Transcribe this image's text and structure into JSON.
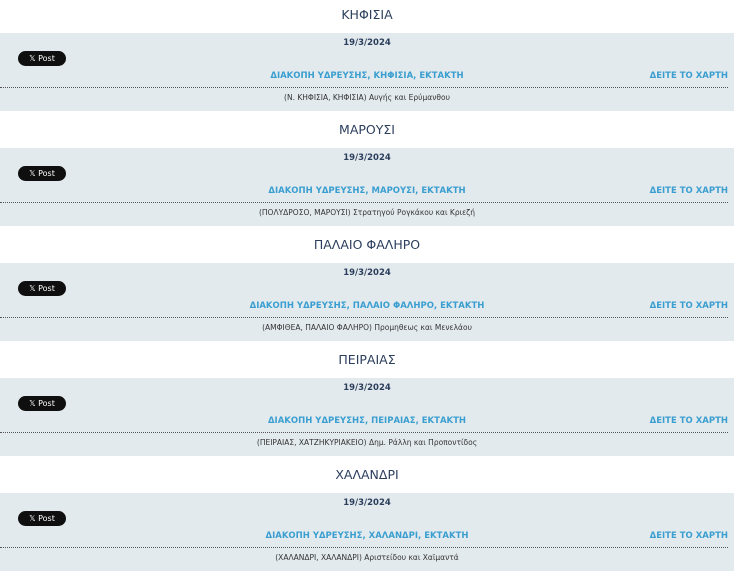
{
  "post_label": "𝕏 Post",
  "map_label": "ΔΕΙΤΕ ΤΟ ΧΑΡΤΗ",
  "items": [
    {
      "area": "ΚΗΦΙΣΙΑ",
      "date": "19/3/2024",
      "title": "ΔΙΑΚΟΠΗ ΥΔΡΕΥΣΗΣ, ΚΗΦΙΣΙΑ, ΕΚΤΑΚΤΗ",
      "address": "(Ν. ΚΗΦΙΣΙΑ, ΚΗΦΙΣΙΑ) Αυγής και Ερύμανθου"
    },
    {
      "area": "ΜΑΡΟΥΣΙ",
      "date": "19/3/2024",
      "title": "ΔΙΑΚΟΠΗ ΥΔΡΕΥΣΗΣ, ΜΑΡΟΥΣΙ, ΕΚΤΑΚΤΗ",
      "address": "(ΠΟΛΥΔΡΟΣΟ, ΜΑΡΟΥΣΙ) Στρατηγού Ρογκάκου και Κριεζή"
    },
    {
      "area": "ΠΑΛΑΙΟ ΦΑΛΗΡΟ",
      "date": "19/3/2024",
      "title": "ΔΙΑΚΟΠΗ ΥΔΡΕΥΣΗΣ, ΠΑΛΑΙΟ ΦΑΛΗΡΟ, ΕΚΤΑΚΤΗ",
      "address": "(ΑΜΦΙΘΕΑ, ΠΑΛΑΙΟ ΦΑΛΗΡΟ) Προμηθεως και Μενελάου"
    },
    {
      "area": "ΠΕΙΡΑΙΑΣ",
      "date": "19/3/2024",
      "title": "ΔΙΑΚΟΠΗ ΥΔΡΕΥΣΗΣ, ΠΕΙΡΑΙΑΣ, ΕΚΤΑΚΤΗ",
      "address": "(ΠΕΙΡΑΙΑΣ, ΧΑΤΖΗΚΥΡΙΑΚΕΙΟ) Δημ. Ράλλη και Προποντίδος"
    },
    {
      "area": "ΧΑΛΑΝΔΡΙ",
      "date": "19/3/2024",
      "title": "ΔΙΑΚΟΠΗ ΥΔΡΕΥΣΗΣ, ΧΑΛΑΝΔΡΙ, ΕΚΤΑΚΤΗ",
      "address": "(ΧΑΛΑΝΔΡΙ, ΧΑΛΑΝΔΡΙ) Αριστείδου και Χαϊμαντά"
    }
  ]
}
